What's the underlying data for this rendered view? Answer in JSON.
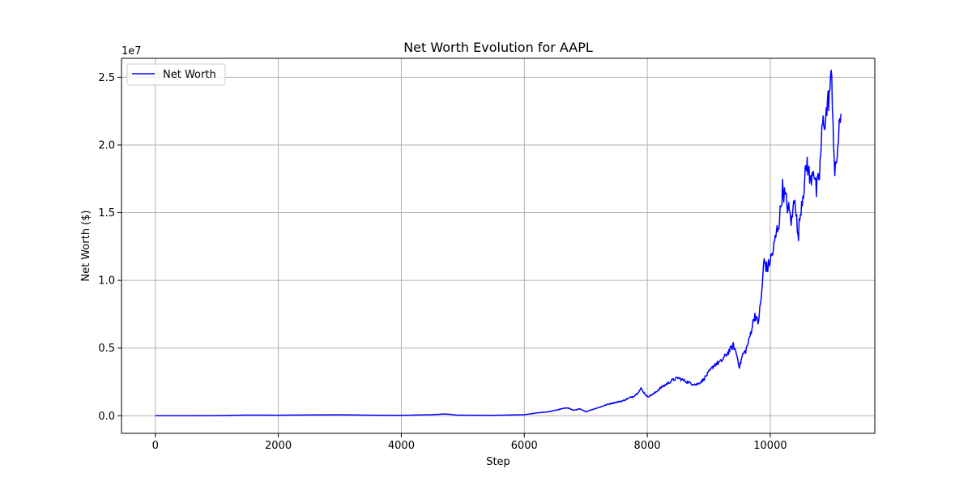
{
  "chart_data": {
    "type": "line",
    "title": "Net Worth Evolution for AAPL",
    "xlabel": "Step",
    "ylabel": "Net Worth ($)",
    "y_offset_label": "1e7",
    "xlim": [
      -550,
      11700
    ],
    "ylim": [
      -1300000,
      26400000
    ],
    "x_ticks": [
      0,
      2000,
      4000,
      6000,
      8000,
      10000
    ],
    "x_tick_labels": [
      "0",
      "2000",
      "4000",
      "6000",
      "8000",
      "10000"
    ],
    "y_ticks": [
      0,
      5000000,
      10000000,
      15000000,
      20000000,
      25000000
    ],
    "y_tick_labels": [
      "0.0",
      "0.5",
      "1.0",
      "1.5",
      "2.0",
      "2.5"
    ],
    "grid": true,
    "legend_position": "top-left",
    "series": [
      {
        "name": "Net Worth",
        "color": "#0000ff",
        "x": [
          0,
          500,
          1000,
          1500,
          2000,
          2500,
          3000,
          3500,
          4000,
          4500,
          4700,
          4800,
          4900,
          5000,
          5500,
          6000,
          6200,
          6400,
          6600,
          6700,
          6800,
          6900,
          7000,
          7200,
          7400,
          7600,
          7800,
          7900,
          8000,
          8100,
          8200,
          8300,
          8400,
          8500,
          8600,
          8700,
          8800,
          8900,
          9000,
          9100,
          9200,
          9300,
          9400,
          9450,
          9500,
          9550,
          9600,
          9650,
          9700,
          9750,
          9800,
          9850,
          9900,
          9950,
          10000,
          10050,
          10100,
          10150,
          10200,
          10250,
          10300,
          10350,
          10400,
          10450,
          10500,
          10550,
          10600,
          10650,
          10700,
          10750,
          10800,
          10850,
          10900,
          10950,
          11000,
          11050,
          11100,
          11150
        ],
        "y": [
          0,
          0,
          10000,
          50000,
          40000,
          60000,
          70000,
          40000,
          30000,
          80000,
          130000,
          100000,
          50000,
          40000,
          30000,
          80000,
          200000,
          300000,
          500000,
          600000,
          400000,
          500000,
          300000,
          600000,
          900000,
          1100000,
          1500000,
          2000000,
          1400000,
          1600000,
          2000000,
          2300000,
          2600000,
          2800000,
          2600000,
          2400000,
          2300000,
          2600000,
          3200000,
          3800000,
          4000000,
          4600000,
          5200000,
          4600000,
          3600000,
          4500000,
          4800000,
          5500000,
          6500000,
          7500000,
          6800000,
          8500000,
          11500000,
          10800000,
          11500000,
          12200000,
          13500000,
          14500000,
          16800000,
          16000000,
          15200000,
          14300000,
          16500000,
          13000000,
          15500000,
          17000000,
          18800000,
          17200000,
          18500000,
          16500000,
          17800000,
          21500000,
          22000000,
          23500000,
          25000000,
          17500000,
          20000000,
          22300000
        ]
      }
    ]
  }
}
